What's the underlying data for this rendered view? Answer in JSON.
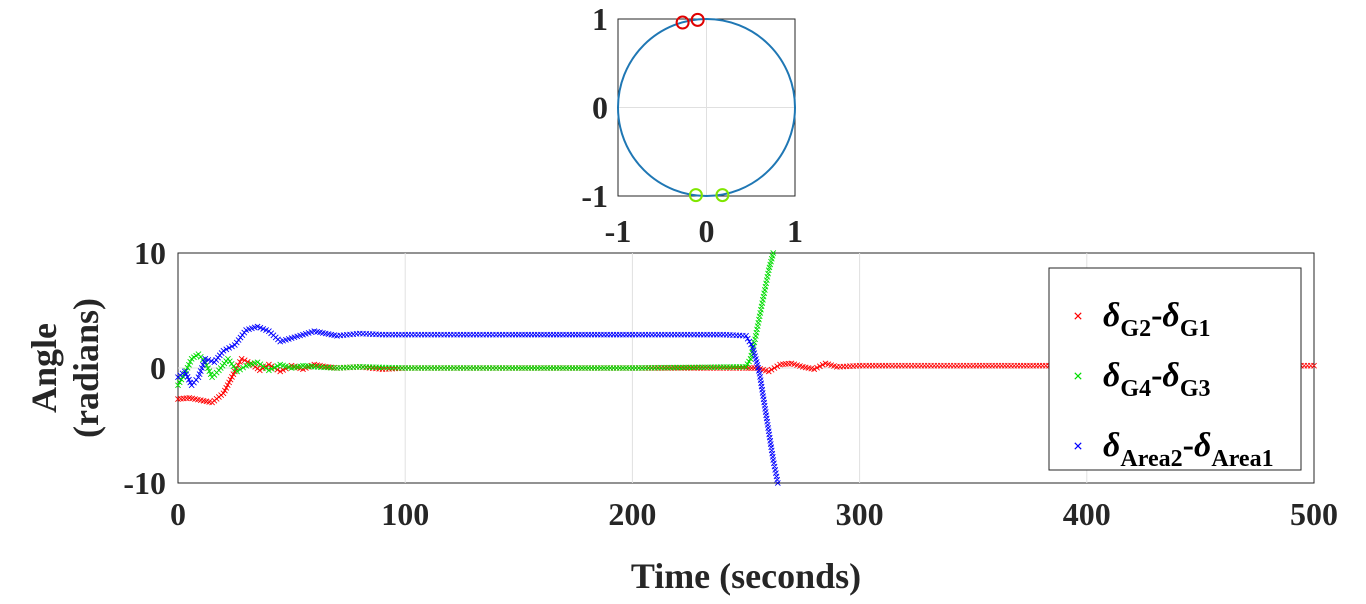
{
  "chart_data": [
    {
      "type": "scatter",
      "subtype": "unit-circle phasor plot",
      "xlim": [
        -1,
        1
      ],
      "ylim": [
        -1,
        1
      ],
      "x_ticks": [
        "-1",
        "0",
        "1"
      ],
      "y_ticks": [
        "-1",
        "0",
        "1"
      ],
      "grid": true,
      "circle_color": "#1f77b4",
      "markers": [
        {
          "color": "#e00000",
          "shape": "circle",
          "points": [
            [
              -0.27,
              0.96
            ],
            [
              -0.1,
              0.99
            ]
          ]
        },
        {
          "color": "#7fe600",
          "shape": "circle",
          "points": [
            [
              -0.12,
              -0.99
            ],
            [
              0.18,
              -0.99
            ]
          ]
        }
      ]
    },
    {
      "type": "scatter",
      "xlabel": "Time (seconds)",
      "ylabel_line1": "Angle",
      "ylabel_line2": "(radians)",
      "xlim": [
        0,
        500
      ],
      "ylim": [
        -10,
        10
      ],
      "x_ticks": [
        "0",
        "100",
        "200",
        "300",
        "400",
        "500"
      ],
      "y_ticks": [
        "-10",
        "0",
        "10"
      ],
      "grid": true,
      "legend_position": "right",
      "series": [
        {
          "name": "δ_G2-δ_G1",
          "legend": {
            "d1": "δ",
            "s1": "G2",
            "sep": "-",
            "d2": "δ",
            "s2": "G1"
          },
          "color": "#ff0000",
          "x": [
            0,
            5,
            10,
            15,
            20,
            25,
            28,
            32,
            36,
            40,
            45,
            50,
            55,
            60,
            65,
            70,
            80,
            90,
            100,
            120,
            150,
            200,
            250,
            255,
            260,
            265,
            270,
            275,
            280,
            285,
            290,
            300,
            320,
            350,
            400,
            450,
            500
          ],
          "y": [
            -2.7,
            -2.6,
            -2.8,
            -3.0,
            -2.2,
            -0.3,
            0.8,
            0.4,
            -0.2,
            0.3,
            -0.3,
            0.2,
            -0.1,
            0.3,
            0.1,
            0.0,
            0.1,
            -0.1,
            0.0,
            0.0,
            0.0,
            0.0,
            0.0,
            0.0,
            -0.3,
            0.3,
            0.4,
            0.1,
            -0.1,
            0.4,
            0.1,
            0.2,
            0.2,
            0.2,
            0.2,
            0.2,
            0.2
          ]
        },
        {
          "name": "δ_G4-δ_G3",
          "legend": {
            "d1": "δ",
            "s1": "G4",
            "sep": "-",
            "d2": "δ",
            "s2": "G3"
          },
          "color": "#00dd00",
          "x": [
            0,
            3,
            6,
            9,
            12,
            15,
            18,
            22,
            26,
            30,
            35,
            40,
            45,
            50,
            55,
            60,
            70,
            80,
            100,
            150,
            200,
            250,
            252,
            254,
            256,
            258,
            260,
            262
          ],
          "y": [
            -1.5,
            -0.5,
            0.8,
            1.2,
            0.5,
            -0.8,
            -0.2,
            0.8,
            -0.3,
            0.2,
            0.5,
            -0.2,
            0.3,
            0.0,
            0.2,
            0.1,
            0.0,
            0.1,
            0.0,
            0.0,
            0.0,
            0.1,
            0.8,
            2.5,
            4.5,
            6.5,
            8.5,
            10.0
          ]
        },
        {
          "name": "δ_Area2-δ_Area1",
          "legend": {
            "d1": "δ",
            "s1": "Area2",
            "sep": "-",
            "d2": "δ",
            "s2": "Area1"
          },
          "color": "#0000ff",
          "x": [
            0,
            3,
            6,
            9,
            12,
            16,
            20,
            25,
            30,
            35,
            40,
            45,
            50,
            55,
            60,
            65,
            70,
            80,
            90,
            100,
            150,
            200,
            240,
            250,
            253,
            256,
            258,
            260,
            262,
            264
          ],
          "y": [
            -0.8,
            -0.3,
            -1.5,
            -0.8,
            0.8,
            0.5,
            1.5,
            2.0,
            3.3,
            3.6,
            3.2,
            2.3,
            2.6,
            2.9,
            3.2,
            3.0,
            2.8,
            3.0,
            2.9,
            2.9,
            2.9,
            2.9,
            2.9,
            2.8,
            1.8,
            -0.5,
            -3.0,
            -5.5,
            -8.0,
            -10.0
          ]
        }
      ]
    }
  ]
}
